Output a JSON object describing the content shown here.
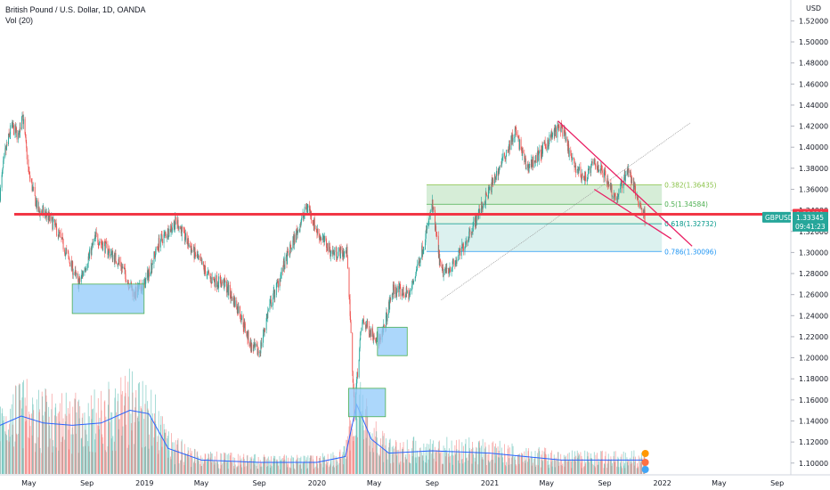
{
  "header": {
    "title": "British Pound / U.S. Dollar, 1D, OANDA",
    "indicator": "Vol (20)"
  },
  "colors": {
    "up": "#26a69a",
    "down": "#ef5350",
    "vol_ma": "#2962ff",
    "horizontal_line": "#f23645",
    "channel": "#e91e63",
    "fib_382": "#8bc34a",
    "fib_5": "#4caf50",
    "fib_618": "#009688",
    "fib_786": "#2196f3",
    "box_fill": "#90caf9",
    "box_stroke": "#4caf50"
  },
  "chart_data": {
    "type": "candlestick",
    "symbol": "GBPUSD",
    "y_axis": {
      "unit_label": "USD",
      "ylim": [
        1.0888,
        1.5398
      ],
      "ticks": [
        "1.52000",
        "1.50000",
        "1.48000",
        "1.46000",
        "1.44000",
        "1.42000",
        "1.40000",
        "1.38000",
        "1.36000",
        "1.34000",
        "1.32000",
        "1.30000",
        "1.28000",
        "1.26000",
        "1.24000",
        "1.22000",
        "1.20000",
        "1.18000",
        "1.16000",
        "1.14000",
        "1.12000",
        "1.10000"
      ]
    },
    "x_axis": {
      "range": [
        "2018-03-01",
        "2022-09-30"
      ],
      "ticks": [
        {
          "label": "May",
          "date": "2018-05-01"
        },
        {
          "label": "Sep",
          "date": "2018-09-01"
        },
        {
          "label": "2019",
          "date": "2019-01-01"
        },
        {
          "label": "May",
          "date": "2019-05-01"
        },
        {
          "label": "Sep",
          "date": "2019-09-01"
        },
        {
          "label": "2020",
          "date": "2020-01-01"
        },
        {
          "label": "May",
          "date": "2020-05-01"
        },
        {
          "label": "Sep",
          "date": "2020-09-01"
        },
        {
          "label": "2021",
          "date": "2021-01-01"
        },
        {
          "label": "May",
          "date": "2021-05-01"
        },
        {
          "label": "Sep",
          "date": "2021-09-01"
        },
        {
          "label": "2022",
          "date": "2022-01-01"
        },
        {
          "label": "May",
          "date": "2022-05-01"
        },
        {
          "label": "Sep",
          "date": "2022-09-01"
        }
      ]
    },
    "price_path": [
      {
        "date": "2018-03-01",
        "close": 1.355
      },
      {
        "date": "2018-03-10",
        "close": 1.39
      },
      {
        "date": "2018-03-25",
        "close": 1.42
      },
      {
        "date": "2018-04-10",
        "close": 1.41
      },
      {
        "date": "2018-04-17",
        "close": 1.435
      },
      {
        "date": "2018-05-01",
        "close": 1.375
      },
      {
        "date": "2018-05-20",
        "close": 1.34
      },
      {
        "date": "2018-06-10",
        "close": 1.335
      },
      {
        "date": "2018-07-01",
        "close": 1.32
      },
      {
        "date": "2018-08-15",
        "close": 1.27
      },
      {
        "date": "2018-09-20",
        "close": 1.315
      },
      {
        "date": "2018-10-20",
        "close": 1.3
      },
      {
        "date": "2018-11-10",
        "close": 1.29
      },
      {
        "date": "2018-12-10",
        "close": 1.26
      },
      {
        "date": "2019-01-01",
        "close": 1.27
      },
      {
        "date": "2019-02-01",
        "close": 1.31
      },
      {
        "date": "2019-03-10",
        "close": 1.33
      },
      {
        "date": "2019-04-01",
        "close": 1.31
      },
      {
        "date": "2019-05-20",
        "close": 1.275
      },
      {
        "date": "2019-06-20",
        "close": 1.27
      },
      {
        "date": "2019-07-20",
        "close": 1.245
      },
      {
        "date": "2019-08-15",
        "close": 1.21
      },
      {
        "date": "2019-09-01",
        "close": 1.205
      },
      {
        "date": "2019-09-20",
        "close": 1.245
      },
      {
        "date": "2019-10-25",
        "close": 1.29
      },
      {
        "date": "2019-12-12",
        "close": 1.345
      },
      {
        "date": "2020-01-01",
        "close": 1.32
      },
      {
        "date": "2020-02-01",
        "close": 1.3
      },
      {
        "date": "2020-03-05",
        "close": 1.3
      },
      {
        "date": "2020-03-20",
        "close": 1.15
      },
      {
        "date": "2020-04-05",
        "close": 1.235
      },
      {
        "date": "2020-05-15",
        "close": 1.215
      },
      {
        "date": "2020-06-10",
        "close": 1.265
      },
      {
        "date": "2020-07-15",
        "close": 1.26
      },
      {
        "date": "2020-08-15",
        "close": 1.31
      },
      {
        "date": "2020-09-01",
        "close": 1.345
      },
      {
        "date": "2020-09-20",
        "close": 1.28
      },
      {
        "date": "2020-10-20",
        "close": 1.29
      },
      {
        "date": "2020-12-01",
        "close": 1.33
      },
      {
        "date": "2021-01-01",
        "close": 1.36
      },
      {
        "date": "2021-02-24",
        "close": 1.415
      },
      {
        "date": "2021-03-20",
        "close": 1.38
      },
      {
        "date": "2021-04-20",
        "close": 1.395
      },
      {
        "date": "2021-05-10",
        "close": 1.41
      },
      {
        "date": "2021-06-01",
        "close": 1.42
      },
      {
        "date": "2021-06-25",
        "close": 1.385
      },
      {
        "date": "2021-07-20",
        "close": 1.37
      },
      {
        "date": "2021-08-10",
        "close": 1.385
      },
      {
        "date": "2021-09-01",
        "close": 1.375
      },
      {
        "date": "2021-09-25",
        "close": 1.35
      },
      {
        "date": "2021-10-20",
        "close": 1.38
      },
      {
        "date": "2021-11-10",
        "close": 1.35
      },
      {
        "date": "2021-11-26",
        "close": 1.333
      }
    ],
    "volume": {
      "ma_label": "Vol (20)",
      "ma_path": [
        {
          "date": "2018-03-01",
          "v": 0.42
        },
        {
          "date": "2018-04-15",
          "v": 0.5
        },
        {
          "date": "2018-06-01",
          "v": 0.44
        },
        {
          "date": "2018-08-01",
          "v": 0.42
        },
        {
          "date": "2018-10-01",
          "v": 0.44
        },
        {
          "date": "2018-12-01",
          "v": 0.55
        },
        {
          "date": "2019-01-10",
          "v": 0.52
        },
        {
          "date": "2019-02-20",
          "v": 0.22
        },
        {
          "date": "2019-05-01",
          "v": 0.12
        },
        {
          "date": "2019-09-01",
          "v": 0.1
        },
        {
          "date": "2020-01-01",
          "v": 0.1
        },
        {
          "date": "2020-03-01",
          "v": 0.15
        },
        {
          "date": "2020-03-25",
          "v": 0.6
        },
        {
          "date": "2020-04-25",
          "v": 0.3
        },
        {
          "date": "2020-06-01",
          "v": 0.18
        },
        {
          "date": "2020-09-01",
          "v": 0.2
        },
        {
          "date": "2021-01-01",
          "v": 0.18
        },
        {
          "date": "2021-06-01",
          "v": 0.12
        },
        {
          "date": "2021-11-26",
          "v": 0.12
        }
      ]
    },
    "horizontal_line": {
      "price": 1.33631
    },
    "fibonacci": [
      {
        "ratio_label": "0.382",
        "price": 1.36435,
        "text": "0.382(1.36435)"
      },
      {
        "ratio_label": "0.5",
        "price": 1.34584,
        "text": "0.5(1.34584)"
      },
      {
        "ratio_label": "0.618",
        "price": 1.32732,
        "text": "0.618(1.32732)"
      },
      {
        "ratio_label": "0.786",
        "price": 1.30096,
        "text": "0.786(1.30096)"
      }
    ],
    "fib_zone_dates": [
      "2020-08-20",
      "2021-12-31"
    ],
    "channel": {
      "upper": [
        {
          "date": "2021-05-25",
          "price": 1.425
        },
        {
          "date": "2022-03-05",
          "price": 1.306
        }
      ],
      "lower": [
        {
          "date": "2021-08-10",
          "price": 1.36
        },
        {
          "date": "2022-01-20",
          "price": 1.313
        }
      ]
    },
    "trendline": [
      {
        "date": "2020-09-20",
        "price": 1.255
      },
      {
        "date": "2022-03-01",
        "price": 1.423
      }
    ],
    "boxes": [
      {
        "d1": "2018-08-01",
        "d2": "2018-12-31",
        "p1": 1.27,
        "p2": 1.242
      },
      {
        "d1": "2020-03-08",
        "d2": "2020-05-25",
        "p1": 1.171,
        "p2": 1.144
      },
      {
        "d1": "2020-05-08",
        "d2": "2020-07-10",
        "p1": 1.229,
        "p2": 1.202
      }
    ],
    "badges": [
      {
        "symbol": "",
        "value": "1.33631",
        "color": "#f23645"
      },
      {
        "symbol": "GBPUSD",
        "value": "1.33345",
        "sub": "09:41:23",
        "color": "#26a69a"
      }
    ]
  }
}
